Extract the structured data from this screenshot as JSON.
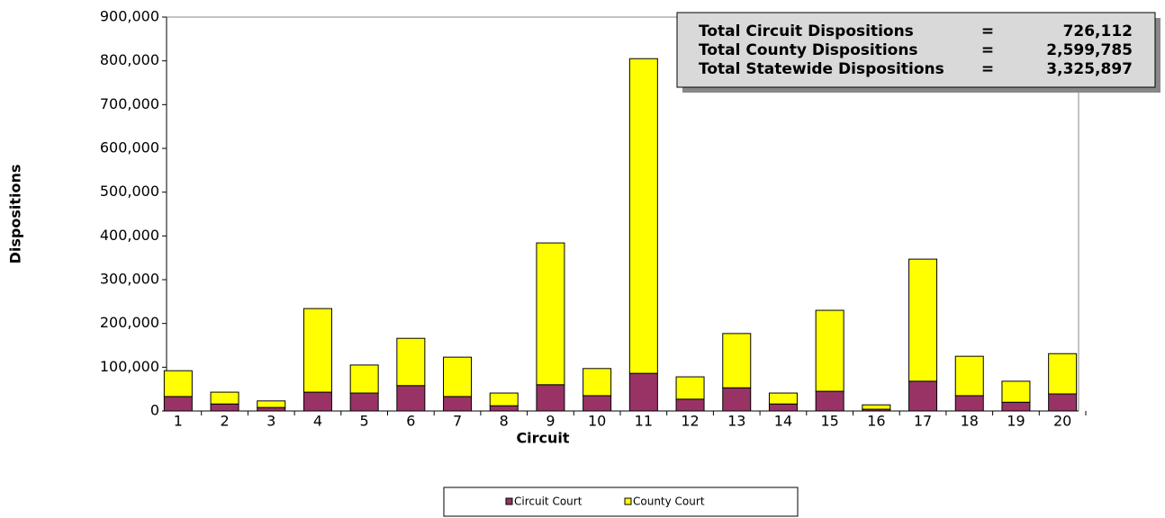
{
  "chart_data": {
    "type": "stacked_bar",
    "x_label": "Circuit",
    "y_label": "Dispositions",
    "categories": [
      "1",
      "2",
      "3",
      "4",
      "5",
      "6",
      "7",
      "8",
      "9",
      "10",
      "11",
      "12",
      "13",
      "14",
      "15",
      "16",
      "17",
      "18",
      "19",
      "20"
    ],
    "series": [
      {
        "name": "Circuit Court",
        "color": "#993366",
        "values": [
          33000,
          16000,
          8000,
          43000,
          41000,
          58000,
          33000,
          12000,
          60000,
          35000,
          86000,
          27000,
          53000,
          16000,
          45000,
          4000,
          68000,
          35000,
          20000,
          39000
        ]
      },
      {
        "name": "County Court",
        "color": "#ffff00",
        "values": [
          59000,
          27000,
          15000,
          191000,
          64000,
          108000,
          90000,
          29000,
          324000,
          62000,
          719000,
          51000,
          124000,
          25000,
          185000,
          10000,
          279000,
          90000,
          48000,
          92000
        ]
      }
    ],
    "ylim": [
      0,
      900000
    ],
    "yticks": [
      0,
      {
        "value": 100000,
        "label": "100,000"
      },
      {
        "value": 200000,
        "label": "200,000"
      },
      {
        "value": 300000,
        "label": "300,000"
      },
      {
        "value": 400000,
        "label": "400,000"
      },
      {
        "value": 500000,
        "label": "500,000"
      },
      {
        "value": 600000,
        "label": "600,000"
      },
      {
        "value": 700000,
        "label": "700,000"
      },
      {
        "value": 800000,
        "label": "800,000"
      },
      {
        "value": 900000,
        "label": "900,000"
      }
    ],
    "grid": false,
    "legend": "bottom",
    "annotations": [
      {
        "label": "Total Circuit Dispositions",
        "equals": "=",
        "value": "726,112"
      },
      {
        "label": "Total County Dispositions",
        "equals": "=",
        "value": "2,599,785"
      },
      {
        "label": "Total Statewide Dispositions",
        "equals": "=",
        "value": "3,325,897"
      }
    ]
  }
}
